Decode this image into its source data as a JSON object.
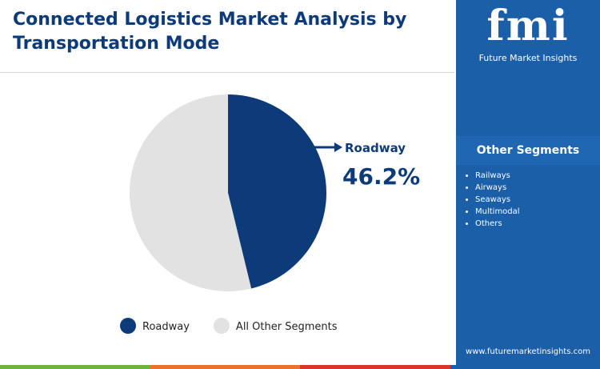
{
  "chart_data": {
    "type": "pie",
    "title": "Connected Logistics Market Analysis by Transportation Mode",
    "categories": [
      "Roadway",
      "All Other Segments"
    ],
    "values": [
      46.2,
      53.8
    ],
    "value_labels": [
      "46.2%",
      null
    ],
    "colors": [
      "#0d3b7a",
      "#e2e2e2"
    ],
    "legend": "bottom"
  },
  "sidebar": {
    "logo": "fmi",
    "brand": "Future Market Insights",
    "heading": "Other Segments",
    "items": [
      "Railways",
      "Airways",
      "Seaways",
      "Multimodal",
      "Others"
    ],
    "url": "www.futuremarketinsights.com"
  }
}
